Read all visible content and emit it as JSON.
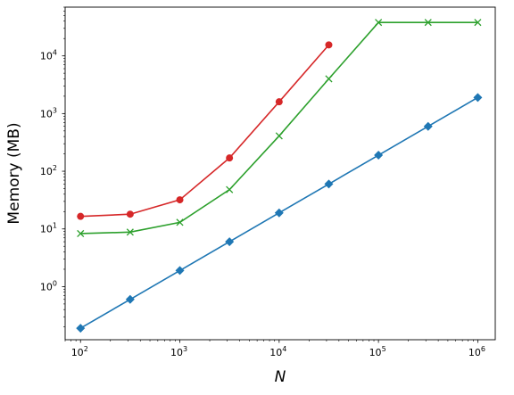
{
  "chart_data": {
    "type": "line",
    "title": "",
    "xlabel": "N",
    "ylabel": "Memory (MB)",
    "xscale": "log",
    "yscale": "log",
    "xlim": [
      70,
      1500000
    ],
    "ylim": [
      0.12,
      70000
    ],
    "grid": false,
    "xticks": [
      {
        "value": 100,
        "base": "10",
        "exp": "2"
      },
      {
        "value": 1000,
        "base": "10",
        "exp": "3"
      },
      {
        "value": 10000,
        "base": "10",
        "exp": "4"
      },
      {
        "value": 100000,
        "base": "10",
        "exp": "5"
      },
      {
        "value": 1000000,
        "base": "10",
        "exp": "6"
      }
    ],
    "yticks": [
      {
        "value": 1,
        "base": "10",
        "exp": "0"
      },
      {
        "value": 10,
        "base": "10",
        "exp": "1"
      },
      {
        "value": 100,
        "base": "10",
        "exp": "2"
      },
      {
        "value": 1000,
        "base": "10",
        "exp": "3"
      },
      {
        "value": 10000,
        "base": "10",
        "exp": "4"
      }
    ],
    "series": [
      {
        "color": "#d62728",
        "marker": "circle",
        "x": [
          100,
          316,
          1000,
          3162,
          10000,
          31623
        ],
        "y": [
          16.5,
          18,
          32,
          170,
          1600,
          15500
        ]
      },
      {
        "color": "#2ca02c",
        "marker": "x",
        "x": [
          100,
          316,
          1000,
          3162,
          10000,
          31623,
          100000,
          316228,
          1000000
        ],
        "y": [
          8.3,
          8.8,
          13,
          48,
          410,
          4000,
          38000,
          38000,
          38000
        ]
      },
      {
        "color": "#1f77b4",
        "marker": "diamond",
        "x": [
          100,
          316,
          1000,
          3162,
          10000,
          31623,
          100000,
          316228,
          1000000
        ],
        "y": [
          0.19,
          0.6,
          1.9,
          6,
          19,
          60,
          190,
          600,
          1900
        ]
      }
    ]
  }
}
